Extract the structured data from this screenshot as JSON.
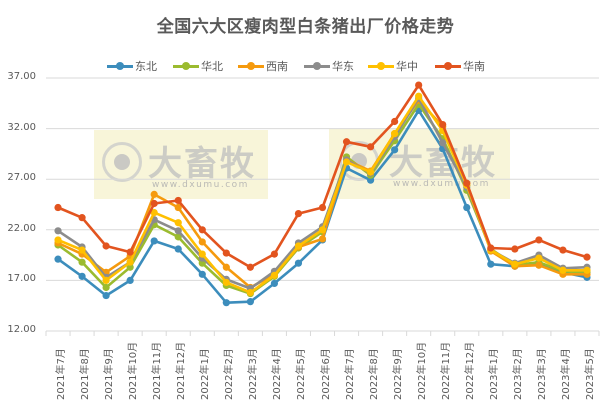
{
  "chart_data": {
    "type": "line",
    "title": "全国六大区瘦肉型白条猪出厂价格走势",
    "xlabel": "",
    "ylabel": "",
    "ylim": [
      12,
      37
    ],
    "yticks": [
      "37.00",
      "32.00",
      "27.00",
      "22.00",
      "17.00",
      "12.00"
    ],
    "grid": true,
    "legend_position": "top",
    "categories": [
      "2021年7月",
      "2021年8月",
      "2021年9月",
      "2021年10月",
      "2021年11月",
      "2021年12月",
      "2022年1月",
      "2022年2月",
      "2022年3月",
      "2022年4月",
      "2022年5月",
      "2022年6月",
      "2022年7月",
      "2022年8月",
      "2022年9月",
      "2022年10月",
      "2022年11月",
      "2022年12月",
      "2023年1月",
      "2023年2月",
      "2023年3月",
      "2023年4月",
      "2023年5月"
    ],
    "series": [
      {
        "name": "东北",
        "color": "#3C8DBC",
        "values": [
          19.1,
          17.4,
          15.5,
          17.0,
          20.9,
          20.1,
          17.6,
          14.8,
          14.9,
          16.7,
          18.7,
          21.0,
          28.1,
          26.9,
          29.9,
          33.8,
          30.0,
          24.2,
          18.6,
          18.4,
          18.6,
          17.8,
          17.3
        ]
      },
      {
        "name": "华北",
        "color": "#9BBB2F",
        "values": [
          20.5,
          18.8,
          16.3,
          18.3,
          22.5,
          21.3,
          18.7,
          16.5,
          15.7,
          17.4,
          20.2,
          21.8,
          29.2,
          27.4,
          30.8,
          34.4,
          31.0,
          25.9,
          20.1,
          18.5,
          18.8,
          17.9,
          17.8
        ]
      },
      {
        "name": "西南",
        "color": "#F59A0E",
        "values": [
          20.7,
          19.6,
          17.8,
          19.4,
          25.5,
          24.2,
          20.8,
          18.3,
          16.3,
          17.6,
          20.3,
          21.1,
          28.9,
          27.8,
          31.5,
          34.8,
          32.2,
          26.6,
          19.9,
          18.4,
          18.5,
          17.6,
          17.6
        ]
      },
      {
        "name": "华东",
        "color": "#8C8C8C",
        "values": [
          21.9,
          20.3,
          17.3,
          18.8,
          23.0,
          21.9,
          19.2,
          17.1,
          16.2,
          17.9,
          20.7,
          22.3,
          28.9,
          27.6,
          31.2,
          35.0,
          30.6,
          26.2,
          20.0,
          18.7,
          19.5,
          18.2,
          18.3
        ]
      },
      {
        "name": "华中",
        "color": "#FFC000",
        "values": [
          21.0,
          20.0,
          17.0,
          18.8,
          23.7,
          22.7,
          19.6,
          16.8,
          15.8,
          17.5,
          20.4,
          22.0,
          28.7,
          27.7,
          31.5,
          35.2,
          31.8,
          26.4,
          20.0,
          18.6,
          19.2,
          18.0,
          18.0
        ]
      },
      {
        "name": "华南",
        "color": "#E2541F",
        "values": [
          24.2,
          23.2,
          20.4,
          19.8,
          24.6,
          24.9,
          22.0,
          19.7,
          18.3,
          19.6,
          23.6,
          24.2,
          30.7,
          30.2,
          32.7,
          36.3,
          32.4,
          26.6,
          20.2,
          20.1,
          21.0,
          20.0,
          19.3
        ]
      }
    ]
  },
  "watermarks": [
    {
      "brand": "大畜牧",
      "url": "www.dxumu.com"
    },
    {
      "brand": "大畜牧",
      "url": "www.dxumu.com"
    }
  ]
}
